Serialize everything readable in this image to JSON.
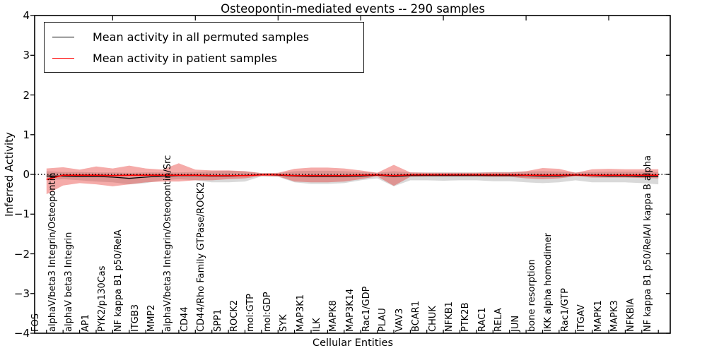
{
  "figure": {
    "background": "#ffffff",
    "axis_color": "#000000"
  },
  "chart_data": {
    "type": "line",
    "title": "Osteopontin-mediated events -- 290 samples",
    "xlabel": "Cellular Entities",
    "ylabel": "Inferred Activity",
    "ylim": [
      -4,
      4
    ],
    "yticks": [
      4,
      3,
      2,
      1,
      0,
      -1,
      -2,
      -3,
      -4
    ],
    "x_major_tick_indices": [
      4,
      9,
      14,
      19,
      24,
      29,
      34
    ],
    "grid": false,
    "legend_position": "upper left",
    "zero_line": {
      "style": "dotted",
      "color": "#000000",
      "value": 0
    },
    "categories": [
      "FOS",
      "alphaV/beta3 Integrin/Osteopontin",
      "alphaV beta3 Integrin",
      "AP1",
      "PYK2/p130Cas",
      "NF kappa B1 p50/RelA",
      "ITGB3",
      "MMP2",
      "alphaV/beta3 Integrin/Osteopontin/Src",
      "CD44",
      "CD44/Rho Family GTPase/ROCK2",
      "SPP1",
      "ROCK2",
      "mol:GTP",
      "mol:GDP",
      "SYK",
      "MAP3K1",
      "ILK",
      "MAPK8",
      "MAP3K14",
      "Rac1/GDP",
      "PLAU",
      "VAV3",
      "BCAR1",
      "CHUK",
      "NFKB1",
      "PTK2B",
      "RAC1",
      "RELA",
      "JUN",
      "bone resorption",
      "IKK alpha homodimer",
      "Rac1/GTP",
      "ITGAV",
      "MAPK1",
      "MAPK3",
      "NFKBIA",
      "NF kappa B1 p50/RelA/I kappa B alpha"
    ],
    "series": [
      {
        "name": "Mean activity in all permuted samples",
        "color": "#000000",
        "line_width": 1.3,
        "band_fill": "rgba(115,115,115,0.27)",
        "values": [
          -0.04,
          -0.04,
          -0.05,
          -0.05,
          -0.07,
          -0.1,
          -0.07,
          -0.04,
          -0.03,
          -0.03,
          -0.04,
          -0.04,
          -0.03,
          -0.01,
          -0.02,
          -0.04,
          -0.05,
          -0.05,
          -0.05,
          -0.04,
          -0.02,
          -0.05,
          -0.03,
          -0.03,
          -0.03,
          -0.03,
          -0.03,
          -0.03,
          -0.03,
          -0.03,
          -0.04,
          -0.04,
          -0.02,
          -0.03,
          -0.04,
          -0.04,
          -0.05,
          -0.05
        ],
        "band_upper": [
          0.08,
          0.06,
          0.06,
          0.05,
          0.05,
          0.04,
          0.05,
          0.05,
          0.05,
          0.06,
          0.08,
          0.09,
          0.08,
          0.03,
          0.03,
          0.08,
          0.09,
          0.09,
          0.08,
          0.06,
          0.04,
          0.08,
          0.05,
          0.05,
          0.05,
          0.05,
          0.05,
          0.06,
          0.06,
          0.07,
          0.08,
          0.07,
          0.05,
          0.06,
          0.07,
          0.07,
          0.07,
          0.06
        ],
        "band_lower": [
          -0.15,
          -0.12,
          -0.15,
          -0.18,
          -0.2,
          -0.25,
          -0.22,
          -0.15,
          -0.12,
          -0.15,
          -0.2,
          -0.2,
          -0.18,
          -0.05,
          -0.06,
          -0.2,
          -0.24,
          -0.24,
          -0.22,
          -0.15,
          -0.1,
          -0.3,
          -0.15,
          -0.15,
          -0.16,
          -0.15,
          -0.15,
          -0.17,
          -0.17,
          -0.2,
          -0.22,
          -0.2,
          -0.15,
          -0.2,
          -0.2,
          -0.2,
          -0.22,
          -0.25
        ]
      },
      {
        "name": "Mean activity in patient samples",
        "color": "#ff0000",
        "line_width": 1.7,
        "band_fill": "rgba(230,45,40,0.40)",
        "values": [
          -0.13,
          -0.02,
          -0.02,
          -0.02,
          -0.03,
          -0.02,
          -0.02,
          -0.02,
          -0.02,
          -0.02,
          -0.03,
          -0.03,
          -0.03,
          -0.01,
          -0.01,
          -0.03,
          -0.03,
          -0.03,
          -0.03,
          -0.02,
          -0.01,
          -0.03,
          -0.01,
          -0.01,
          -0.01,
          -0.01,
          -0.01,
          -0.01,
          -0.01,
          -0.02,
          -0.02,
          -0.02,
          -0.01,
          -0.02,
          -0.02,
          -0.02,
          -0.02,
          -0.02
        ],
        "band_upper": [
          0.15,
          0.18,
          0.12,
          0.2,
          0.15,
          0.22,
          0.15,
          0.12,
          0.28,
          0.12,
          0.1,
          0.1,
          0.08,
          0.03,
          0.04,
          0.14,
          0.17,
          0.17,
          0.15,
          0.1,
          0.04,
          0.24,
          0.05,
          0.04,
          0.04,
          0.04,
          0.04,
          0.05,
          0.05,
          0.08,
          0.16,
          0.14,
          0.04,
          0.13,
          0.14,
          0.13,
          0.13,
          0.13
        ],
        "band_lower": [
          -0.5,
          -0.28,
          -0.22,
          -0.25,
          -0.3,
          -0.25,
          -0.2,
          -0.18,
          -0.18,
          -0.15,
          -0.15,
          -0.12,
          -0.1,
          -0.04,
          -0.05,
          -0.18,
          -0.2,
          -0.2,
          -0.18,
          -0.12,
          -0.05,
          -0.29,
          -0.06,
          -0.05,
          -0.05,
          -0.05,
          -0.05,
          -0.06,
          -0.06,
          -0.1,
          -0.12,
          -0.1,
          -0.05,
          -0.08,
          -0.08,
          -0.08,
          -0.09,
          -0.1
        ]
      }
    ]
  }
}
